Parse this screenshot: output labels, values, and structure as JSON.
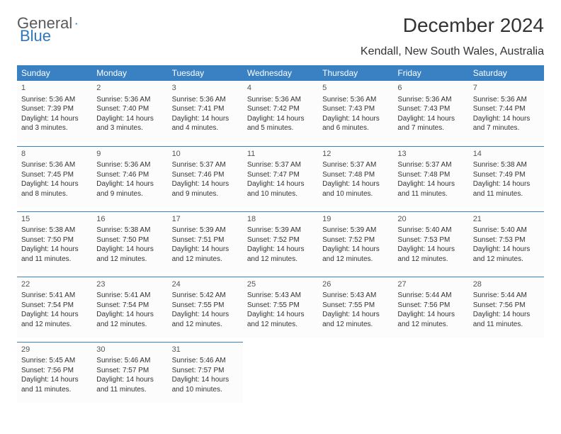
{
  "logo": {
    "text1": "General",
    "text2": "Blue"
  },
  "title": "December 2024",
  "location": "Kendall, New South Wales, Australia",
  "colors": {
    "header_bg": "#3a81c4",
    "header_fg": "#ffffff",
    "row_border": "#3a81c4",
    "cell_bg": "#fcfcfc",
    "page_bg": "#ffffff",
    "text": "#333333",
    "logo_gray": "#5a5a5a",
    "logo_blue": "#2f77bc"
  },
  "weekdays": [
    "Sunday",
    "Monday",
    "Tuesday",
    "Wednesday",
    "Thursday",
    "Friday",
    "Saturday"
  ],
  "days": [
    {
      "n": 1,
      "sr": "5:36 AM",
      "ss": "7:39 PM",
      "dl": "14 hours and 3 minutes."
    },
    {
      "n": 2,
      "sr": "5:36 AM",
      "ss": "7:40 PM",
      "dl": "14 hours and 3 minutes."
    },
    {
      "n": 3,
      "sr": "5:36 AM",
      "ss": "7:41 PM",
      "dl": "14 hours and 4 minutes."
    },
    {
      "n": 4,
      "sr": "5:36 AM",
      "ss": "7:42 PM",
      "dl": "14 hours and 5 minutes."
    },
    {
      "n": 5,
      "sr": "5:36 AM",
      "ss": "7:43 PM",
      "dl": "14 hours and 6 minutes."
    },
    {
      "n": 6,
      "sr": "5:36 AM",
      "ss": "7:43 PM",
      "dl": "14 hours and 7 minutes."
    },
    {
      "n": 7,
      "sr": "5:36 AM",
      "ss": "7:44 PM",
      "dl": "14 hours and 7 minutes."
    },
    {
      "n": 8,
      "sr": "5:36 AM",
      "ss": "7:45 PM",
      "dl": "14 hours and 8 minutes."
    },
    {
      "n": 9,
      "sr": "5:36 AM",
      "ss": "7:46 PM",
      "dl": "14 hours and 9 minutes."
    },
    {
      "n": 10,
      "sr": "5:37 AM",
      "ss": "7:46 PM",
      "dl": "14 hours and 9 minutes."
    },
    {
      "n": 11,
      "sr": "5:37 AM",
      "ss": "7:47 PM",
      "dl": "14 hours and 10 minutes."
    },
    {
      "n": 12,
      "sr": "5:37 AM",
      "ss": "7:48 PM",
      "dl": "14 hours and 10 minutes."
    },
    {
      "n": 13,
      "sr": "5:37 AM",
      "ss": "7:48 PM",
      "dl": "14 hours and 11 minutes."
    },
    {
      "n": 14,
      "sr": "5:38 AM",
      "ss": "7:49 PM",
      "dl": "14 hours and 11 minutes."
    },
    {
      "n": 15,
      "sr": "5:38 AM",
      "ss": "7:50 PM",
      "dl": "14 hours and 11 minutes."
    },
    {
      "n": 16,
      "sr": "5:38 AM",
      "ss": "7:50 PM",
      "dl": "14 hours and 12 minutes."
    },
    {
      "n": 17,
      "sr": "5:39 AM",
      "ss": "7:51 PM",
      "dl": "14 hours and 12 minutes."
    },
    {
      "n": 18,
      "sr": "5:39 AM",
      "ss": "7:52 PM",
      "dl": "14 hours and 12 minutes."
    },
    {
      "n": 19,
      "sr": "5:39 AM",
      "ss": "7:52 PM",
      "dl": "14 hours and 12 minutes."
    },
    {
      "n": 20,
      "sr": "5:40 AM",
      "ss": "7:53 PM",
      "dl": "14 hours and 12 minutes."
    },
    {
      "n": 21,
      "sr": "5:40 AM",
      "ss": "7:53 PM",
      "dl": "14 hours and 12 minutes."
    },
    {
      "n": 22,
      "sr": "5:41 AM",
      "ss": "7:54 PM",
      "dl": "14 hours and 12 minutes."
    },
    {
      "n": 23,
      "sr": "5:41 AM",
      "ss": "7:54 PM",
      "dl": "14 hours and 12 minutes."
    },
    {
      "n": 24,
      "sr": "5:42 AM",
      "ss": "7:55 PM",
      "dl": "14 hours and 12 minutes."
    },
    {
      "n": 25,
      "sr": "5:43 AM",
      "ss": "7:55 PM",
      "dl": "14 hours and 12 minutes."
    },
    {
      "n": 26,
      "sr": "5:43 AM",
      "ss": "7:55 PM",
      "dl": "14 hours and 12 minutes."
    },
    {
      "n": 27,
      "sr": "5:44 AM",
      "ss": "7:56 PM",
      "dl": "14 hours and 12 minutes."
    },
    {
      "n": 28,
      "sr": "5:44 AM",
      "ss": "7:56 PM",
      "dl": "14 hours and 11 minutes."
    },
    {
      "n": 29,
      "sr": "5:45 AM",
      "ss": "7:56 PM",
      "dl": "14 hours and 11 minutes."
    },
    {
      "n": 30,
      "sr": "5:46 AM",
      "ss": "7:57 PM",
      "dl": "14 hours and 11 minutes."
    },
    {
      "n": 31,
      "sr": "5:46 AM",
      "ss": "7:57 PM",
      "dl": "14 hours and 10 minutes."
    }
  ],
  "labels": {
    "sunrise": "Sunrise: ",
    "sunset": "Sunset: ",
    "daylight": "Daylight: "
  }
}
